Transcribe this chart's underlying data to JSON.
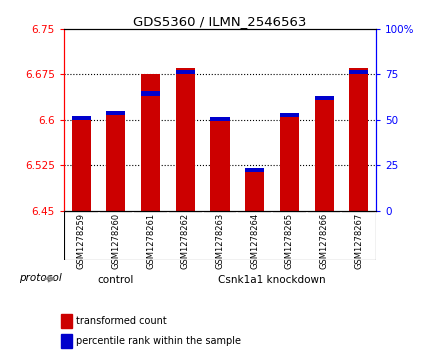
{
  "title": "GDS5360 / ILMN_2546563",
  "samples": [
    "GSM1278259",
    "GSM1278260",
    "GSM1278261",
    "GSM1278262",
    "GSM1278263",
    "GSM1278264",
    "GSM1278265",
    "GSM1278266",
    "GSM1278267"
  ],
  "red_values": [
    6.605,
    6.61,
    6.675,
    6.686,
    6.605,
    6.516,
    6.608,
    6.635,
    6.686
  ],
  "blue_values": [
    6.6,
    6.608,
    6.64,
    6.675,
    6.598,
    6.513,
    6.604,
    6.632,
    6.675
  ],
  "ymin": 6.45,
  "ymax": 6.75,
  "yticks": [
    6.45,
    6.525,
    6.6,
    6.675,
    6.75
  ],
  "ytick_labels": [
    "6.45",
    "6.525",
    "6.6",
    "6.675",
    "6.75"
  ],
  "right_yticks": [
    0,
    25,
    50,
    75,
    100
  ],
  "right_ytick_labels": [
    "0",
    "25",
    "50",
    "75",
    "100%"
  ],
  "bar_bottom": 6.45,
  "control_count": 3,
  "knockdown_label": "Csnk1a1 knockdown",
  "control_label": "control",
  "protocol_label": "protocol",
  "red_color": "#cc0000",
  "blue_color": "#0000cc",
  "bar_width": 0.55,
  "tick_bg_color": "#d8d8d8",
  "green_color": "#90ee90",
  "grid_color": "#000000",
  "legend_red_label": "transformed count",
  "legend_blue_label": "percentile rank within the sample",
  "blue_bar_height": 0.007
}
